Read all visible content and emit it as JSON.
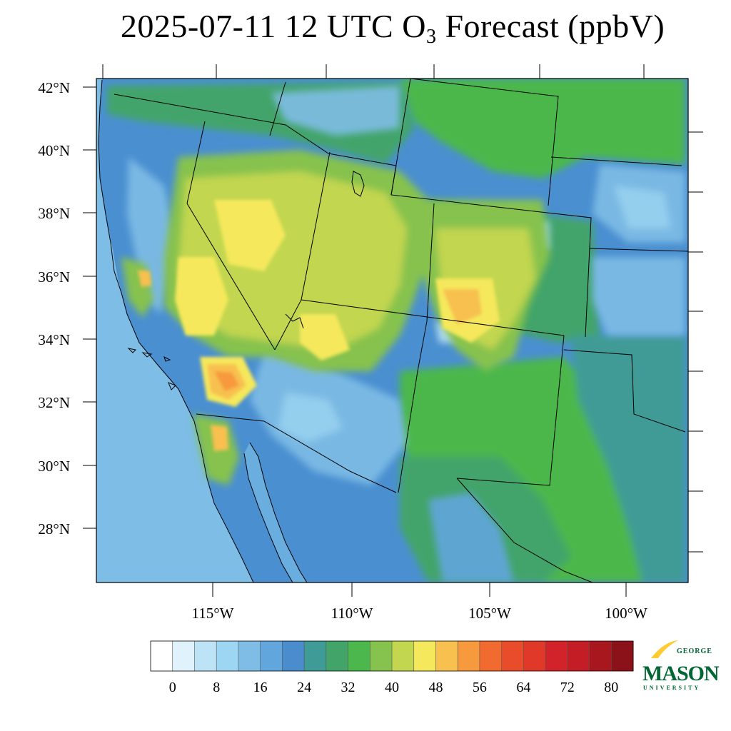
{
  "title": {
    "prefix": "2025-07-11 12 UTC O",
    "subscript": "3",
    "suffix": " Forecast (ppbV)"
  },
  "map": {
    "lat_labels": [
      "42°N",
      "40°N",
      "38°N",
      "36°N",
      "34°N",
      "32°N",
      "30°N",
      "28°N"
    ],
    "lon_labels": [
      "115°W",
      "110°W",
      "105°W",
      "100°W"
    ],
    "ocean_color": "#7dbde6",
    "land_background_color": "#4a8fd0"
  },
  "colorbar": {
    "colors": [
      "#ffffff",
      "#e0f2fb",
      "#bde3f6",
      "#9dd6f2",
      "#7fbde6",
      "#62a6de",
      "#4a8ccc",
      "#3f9b96",
      "#43a46a",
      "#4bb74c",
      "#86c24e",
      "#c2d650",
      "#f5e85c",
      "#f8c04f",
      "#f7993d",
      "#f16a2f",
      "#e84c2a",
      "#e0392a",
      "#d2232a",
      "#c41d25",
      "#a8161e",
      "#8b1218"
    ],
    "tick_labels": [
      "0",
      "8",
      "16",
      "24",
      "32",
      "40",
      "48",
      "56",
      "64",
      "72",
      "80"
    ]
  },
  "logo": {
    "line1": "GEORGE",
    "line2": "MASON",
    "line3": "UNIVERSITY",
    "green": "#006633",
    "gold": "#ffcc33"
  }
}
